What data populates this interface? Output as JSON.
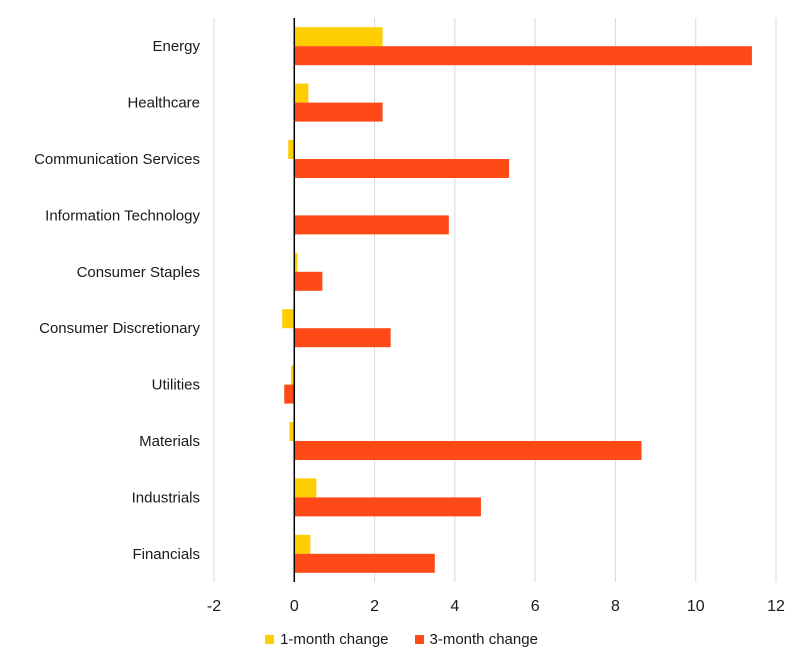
{
  "chart_data": {
    "type": "bar",
    "orientation": "horizontal",
    "categories": [
      "Energy",
      "Healthcare",
      "Communication Services",
      "Information Technology",
      "Consumer Staples",
      "Consumer Discretionary",
      "Utilities",
      "Materials",
      "Industrials",
      "Financials"
    ],
    "series": [
      {
        "name": "1-month change",
        "color": "#ffce00",
        "values": [
          2.2,
          0.35,
          -0.15,
          0.0,
          0.08,
          -0.3,
          -0.08,
          -0.12,
          0.55,
          0.4
        ]
      },
      {
        "name": "3-month change",
        "color": "#ff4a17",
        "values": [
          11.4,
          2.2,
          5.35,
          3.85,
          0.7,
          2.4,
          -0.25,
          8.65,
          4.65,
          3.5
        ]
      }
    ],
    "xlim": [
      -2,
      12
    ],
    "xticks": [
      -2,
      0,
      2,
      4,
      6,
      8,
      10,
      12
    ],
    "grid": "vertical",
    "legend_position": "bottom-center"
  }
}
